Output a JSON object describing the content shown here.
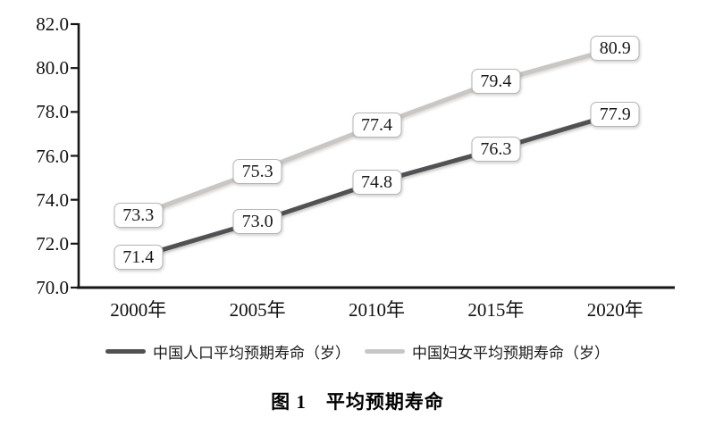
{
  "colors": {
    "axis": "#161616",
    "population_line": "#515153",
    "women_line": "#c9c7c5",
    "label_box_border": "#b5b5b5",
    "background": "#ffffff"
  },
  "chart_data": {
    "type": "line",
    "title": "图 1　平均预期寿命",
    "categories": [
      "2000年",
      "2005年",
      "2010年",
      "2015年",
      "2020年"
    ],
    "series": [
      {
        "name": "中国人口平均预期寿命（岁）",
        "values": [
          71.4,
          73.0,
          74.8,
          76.3,
          77.9
        ],
        "labels": [
          "71.4",
          "73.0",
          "74.8",
          "76.3",
          "77.9"
        ],
        "color": "#515153",
        "shade": "dark"
      },
      {
        "name": "中国妇女平均预期寿命（岁）",
        "values": [
          73.3,
          75.3,
          77.4,
          79.4,
          80.9
        ],
        "labels": [
          "73.3",
          "75.3",
          "77.4",
          "79.4",
          "80.9"
        ],
        "color": "#c9c7c5",
        "shade": "light"
      }
    ],
    "ylim": [
      70.0,
      82.0
    ],
    "ytick_labels": [
      "70.0",
      "72.0",
      "74.0",
      "76.0",
      "78.0",
      "80.0",
      "82.0"
    ],
    "ytick_values": [
      70.0,
      72.0,
      74.0,
      76.0,
      78.0,
      80.0,
      82.0
    ],
    "xlabel": "",
    "ylabel": "",
    "grid": false,
    "legend_position": "bottom",
    "data_labels": true
  }
}
